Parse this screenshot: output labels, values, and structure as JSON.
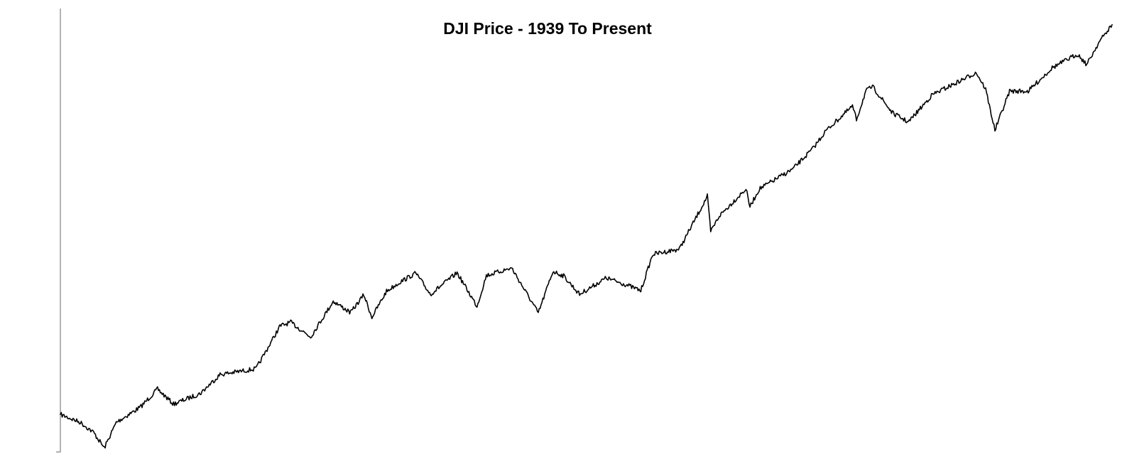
{
  "chart_data": {
    "type": "line",
    "title": "DJI Price - 1939 To Present",
    "xlabel": "",
    "ylabel": "",
    "y_scale": "log",
    "grid": false,
    "legend": "none",
    "xlim": [
      1939,
      2018
    ],
    "ylim": [
      92,
      30000
    ],
    "line_color": "#000000",
    "axis_color": "#9a9a9a",
    "series": [
      {
        "x": [
          1939.0,
          1940.5,
          1941.5,
          1942.3,
          1943.2,
          1945.0,
          1946.3,
          1947.5,
          1949.5,
          1951.0,
          1953.7,
          1955.5,
          1956.3,
          1957.8,
          1959.5,
          1960.8,
          1961.8,
          1962.4,
          1963.5,
          1964.5,
          1965.7,
          1966.8,
          1968.8,
          1970.3,
          1971.0,
          1972.9,
          1974.9,
          1976.0,
          1976.8,
          1978.0,
          1980.0,
          1981.5,
          1982.6,
          1983.5,
          1985.5,
          1986.6,
          1987.6,
          1987.85,
          1988.5,
          1990.5,
          1990.8,
          1991.5,
          1994.0,
          1995.5,
          1996.5,
          1998.5,
          1998.8,
          1999.5,
          2000.0,
          2001.5,
          2002.7,
          2004.5,
          2006.5,
          2007.8,
          2008.5,
          2009.2,
          2010.3,
          2011.7,
          2013.5,
          2015.4,
          2016.1,
          2017.0,
          2018.0
        ],
        "values": [
          150,
          135,
          118,
          96,
          135,
          165,
          210,
          172,
          198,
          255,
          275,
          485,
          510,
          420,
          675,
          580,
          735,
          545,
          770,
          870,
          980,
          740,
          985,
          631,
          950,
          1050,
          577,
          1004,
          945,
          740,
          920,
          840,
          777,
          1260,
          1350,
          1950,
          2722,
          1700,
          2100,
          2999,
          2365,
          3000,
          3900,
          5100,
          6500,
          9000,
          7539,
          11000,
          11700,
          8235,
          7286,
          10500,
          12500,
          14100,
          11300,
          6547,
          11000,
          11000,
          15000,
          18000,
          15660,
          21000,
          26600
        ]
      }
    ]
  }
}
